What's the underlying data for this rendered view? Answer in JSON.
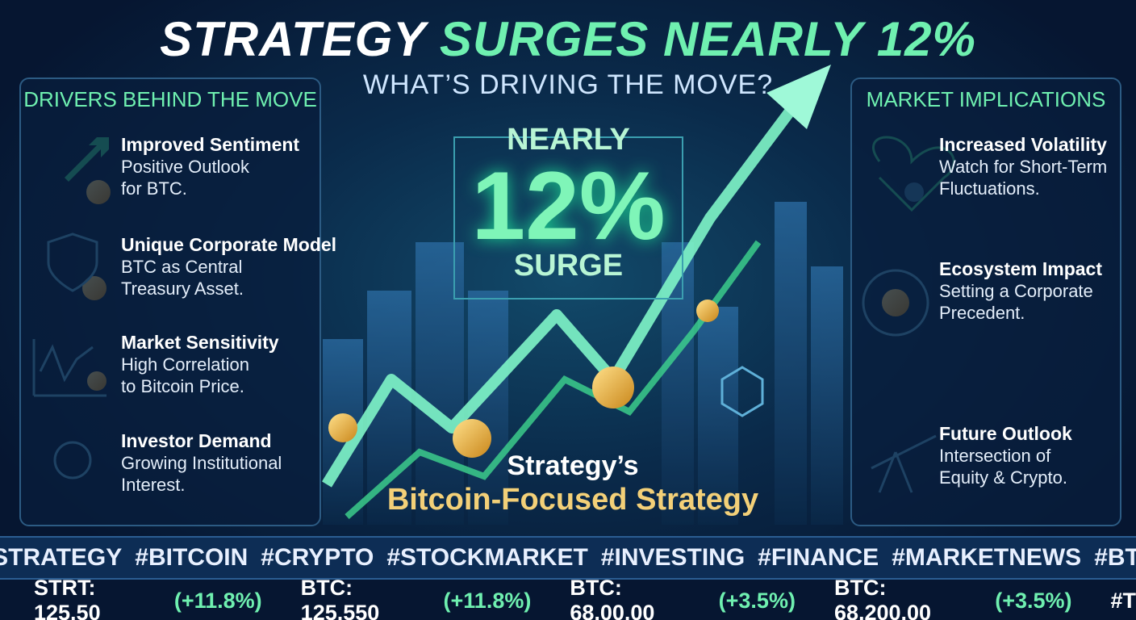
{
  "header": {
    "title_lead": "STRATEGY",
    "title_rest": "SURGES NEARLY 12%",
    "subtitle": "WHAT’S DRIVING THE MOVE?"
  },
  "drivers": {
    "heading": "DRIVERS BEHIND THE MOVE",
    "items": [
      {
        "title": "Improved Sentiment",
        "text": [
          "Positive Outlook",
          "for BTC."
        ]
      },
      {
        "title": "Unique Corporate Model",
        "text": [
          "BTC as Central",
          "Treasury Asset."
        ]
      },
      {
        "title": "Market Sensitivity",
        "text": [
          "High Correlation",
          "to Bitcoin Price."
        ]
      },
      {
        "title": "Investor Demand",
        "text": [
          "Growing Institutional",
          "Interest."
        ]
      }
    ]
  },
  "center": {
    "top": "NEARLY",
    "big": "12%",
    "bottom": "SURGE",
    "caption": [
      "Strategy’s",
      "Bitcoin-Focused Strategy"
    ]
  },
  "implications": {
    "heading": "MARKET IMPLICATIONS",
    "items": [
      {
        "title": "Increased Volatility",
        "text": [
          "Watch for Short-Term",
          "Fluctuations."
        ]
      },
      {
        "title": "Ecosystem Impact",
        "text": [
          "Setting a Corporate",
          "Precedent."
        ]
      },
      {
        "title": "Future Outlook",
        "text": [
          "Intersection of",
          "Equity & Crypto."
        ]
      }
    ]
  },
  "hashtags": [
    "#STRATEGY",
    "#BITCOIN",
    "#CRYPTO",
    "#STOCKMARKET",
    "#INVESTING",
    "#FINANCE",
    "#MARKETNEWS",
    "#BTC"
  ],
  "ticker": [
    {
      "quote": "STRT: 125.50",
      "change": "(+11.8%)"
    },
    {
      "quote": "BTC: 125.550",
      "change": "(+11.8%)"
    },
    {
      "quote": "BTC: 68,00.00",
      "change": "(+3.5%)"
    },
    {
      "quote": "BTC: 68,200.00",
      "change": "(+3.5%)"
    },
    {
      "quote": "#T",
      "change": ""
    }
  ]
}
